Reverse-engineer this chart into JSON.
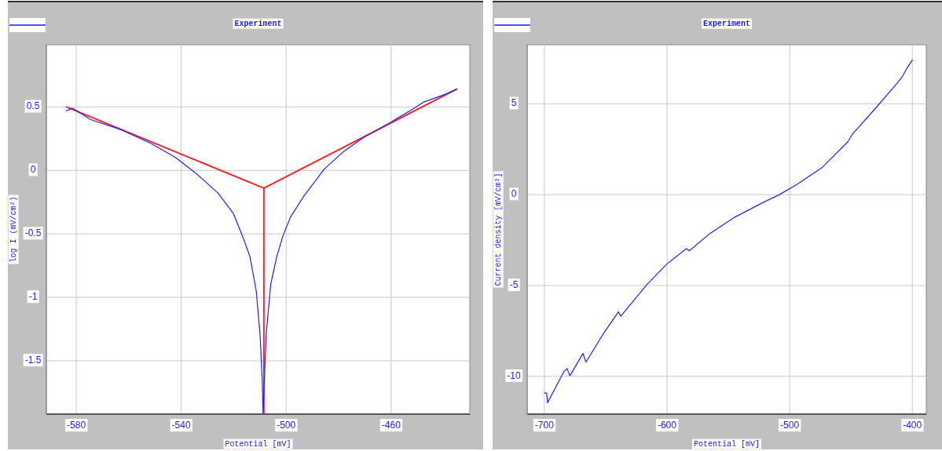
{
  "chart_data": [
    {
      "type": "line",
      "title": "Experiment",
      "xlabel": "Potential [mV]",
      "ylabel": "log I (mV/cm²)",
      "xlim": [
        -591.4,
        -430
      ],
      "ylim": [
        -1.92,
        0.99
      ],
      "xticks": [
        -580,
        -540,
        -500,
        -460
      ],
      "yticks": [
        0.5,
        0,
        -0.5,
        -1,
        -1.5
      ],
      "grid": true,
      "line_style": "solid",
      "marker": "none",
      "series": [
        {
          "color": "#2020ff",
          "x": [
            -583.7,
            -581.4,
            -574.5,
            -562.9,
            -551.3,
            -542.1,
            -534,
            -525.9,
            -520.1,
            -516.6,
            -513.8,
            -511.4,
            -509.9,
            -509.1,
            -508.8,
            -508.3,
            -507.6,
            -505.9,
            -503.6,
            -501.3,
            -498.4,
            -493.5,
            -485.5,
            -478.6,
            -470.5,
            -460.1,
            -452,
            -447.4,
            -439.3,
            -434.9
          ],
          "values": [
            0.47,
            0.49,
            0.4,
            0.32,
            0.21,
            0.1,
            -0.03,
            -0.18,
            -0.34,
            -0.52,
            -0.68,
            -0.95,
            -1.31,
            -1.67,
            -1.92,
            -1.65,
            -1.29,
            -0.9,
            -0.68,
            -0.52,
            -0.37,
            -0.21,
            0.01,
            0.14,
            0.26,
            0.38,
            0.48,
            0.54,
            0.6,
            0.64
          ]
        },
        {
          "color": "#ff2020",
          "x": [
            -583.7,
            -508.5,
            -435
          ],
          "values": [
            0.5,
            -0.14,
            0.64
          ]
        },
        {
          "color": "#ff2020",
          "x": [
            -508.5,
            -508.5
          ],
          "values": [
            -0.14,
            -1.92
          ]
        }
      ]
    },
    {
      "type": "line",
      "title": "Experiment",
      "xlabel": "Potential [mV]",
      "ylabel": "Current density [mV/cm²]",
      "xlim": [
        -714,
        -388.6
      ],
      "ylim": [
        -12.08,
        8.25
      ],
      "xticks": [
        -700,
        -600,
        -500,
        -400
      ],
      "yticks": [
        5,
        0,
        -5,
        -10
      ],
      "grid": true,
      "line_style": "solid",
      "marker": "none",
      "series": [
        {
          "color": "#2020ff",
          "x": [
            -700,
            -698.1,
            -697.4,
            -683.9,
            -681.5,
            -679.2,
            -668.5,
            -666.1,
            -651.9,
            -639.6,
            -637.7,
            -616.3,
            -600,
            -584.2,
            -581.8,
            -566.4,
            -545,
            -521.3,
            -508.3,
            -495.3,
            -473.9,
            -452.6,
            -449,
            -428.9,
            -414.6,
            -408.7,
            -404,
            -400
          ],
          "values": [
            -10.92,
            -10.92,
            -11.45,
            -9.72,
            -9.57,
            -9.97,
            -8.74,
            -9.22,
            -7.65,
            -6.45,
            -6.69,
            -4.94,
            -3.81,
            -2.97,
            -3.09,
            -2.21,
            -1.25,
            -0.42,
            0,
            0.51,
            1.47,
            2.91,
            3.31,
            4.84,
            5.96,
            6.44,
            7.0,
            7.4
          ]
        }
      ]
    }
  ]
}
